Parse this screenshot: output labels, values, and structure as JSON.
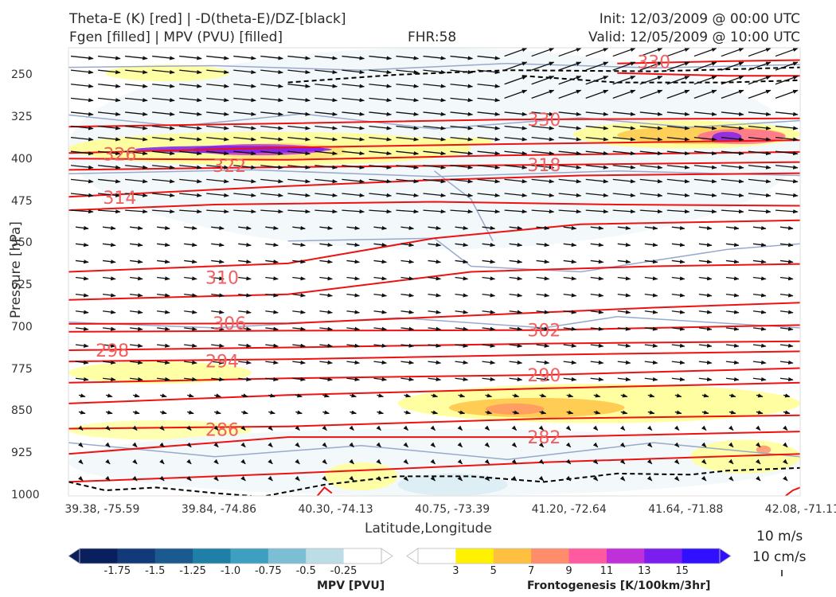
{
  "header": {
    "title_line1": "Theta-E (K) [red] | -D(theta-E)/DZ-[black]",
    "title_line2": "Fgen [filled] | MPV (PVU) [filled]",
    "fhr": "FHR:58",
    "init": "Init: 12/03/2009 @ 00:00 UTC",
    "valid": "Valid: 12/05/2009 @ 10:00 UTC"
  },
  "chart_data": {
    "type": "cross-section",
    "ylabel": "Pressure [hPa]",
    "xlabel": "Latitude,Longitude",
    "y_ticks": [
      "250",
      "325",
      "400",
      "475",
      "550",
      "625",
      "700",
      "775",
      "850",
      "925",
      "1000"
    ],
    "x_ticks": [
      "39.38, -75.59",
      "39.84, -74.86",
      "40.30, -74.13",
      "40.75, -73.39",
      "41.20, -72.64",
      "41.64, -71.88",
      "42.08, -71.11"
    ],
    "ylim": [
      1000,
      200
    ],
    "theta_e_contours": [
      {
        "level": "330",
        "label_pos": [
          0.65,
          328
        ]
      },
      {
        "level": "326",
        "label_pos": [
          0.07,
          390
        ]
      },
      {
        "level": "322",
        "label_pos": [
          0.22,
          410
        ]
      },
      {
        "level": "318",
        "label_pos": [
          0.65,
          409
        ]
      },
      {
        "level": "314",
        "label_pos": [
          0.07,
          467
        ]
      },
      {
        "level": "310",
        "label_pos": [
          0.21,
          610
        ]
      },
      {
        "level": "306",
        "label_pos": [
          0.22,
          692
        ]
      },
      {
        "level": "302",
        "label_pos": [
          0.65,
          704
        ]
      },
      {
        "level": "298",
        "label_pos": [
          0.06,
          740
        ]
      },
      {
        "level": "294",
        "label_pos": [
          0.21,
          759
        ]
      },
      {
        "level": "290",
        "label_pos": [
          0.65,
          784
        ]
      },
      {
        "level": "286",
        "label_pos": [
          0.21,
          881
        ]
      },
      {
        "level": "282",
        "label_pos": [
          0.65,
          895
        ]
      },
      {
        "level": "330",
        "label_pos": [
          0.8,
          225
        ]
      }
    ],
    "mpv_colorbar": {
      "title": "MPV [PVU]",
      "ticks": [
        "-1.75",
        "-1.5",
        "-1.25",
        "-1.0",
        "-0.75",
        "-0.5",
        "-0.25"
      ],
      "colors": [
        "#0a1f5e",
        "#123a78",
        "#1a5a8e",
        "#1f7fa6",
        "#3da0c0",
        "#7cbfd4",
        "#bcdde6",
        "#ffffff"
      ]
    },
    "fgen_colorbar": {
      "title": "Frontogenesis [K/100km/3hr]",
      "ticks": [
        "3",
        "5",
        "7",
        "9",
        "11",
        "13",
        "15"
      ],
      "colors": [
        "#ffffff",
        "#fff200",
        "#ffc040",
        "#ff8c6a",
        "#ff5aa0",
        "#c030d8",
        "#7a1ef0",
        "#3010ff"
      ]
    },
    "vector_reference": {
      "horizontal": "10 m/s",
      "vertical": "10 cm/s"
    },
    "colors": {
      "theta_e": "#ee1111",
      "stability": "#000000",
      "mpv_outline": "#99a9cc"
    }
  }
}
